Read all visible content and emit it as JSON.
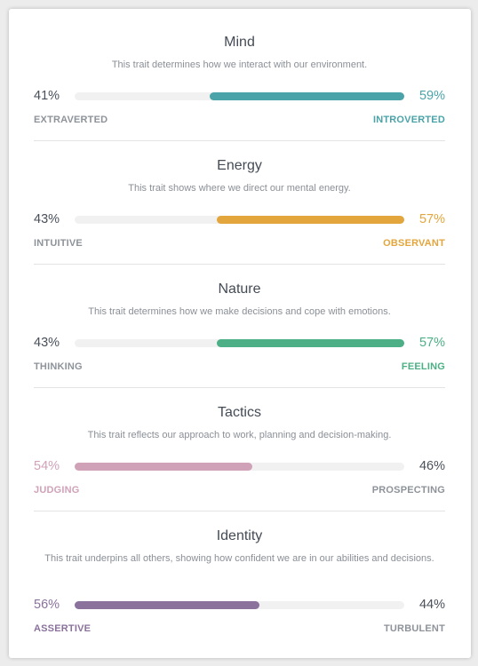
{
  "traits": [
    {
      "title": "Mind",
      "description": "This trait determines how we interact with our environment.",
      "left": {
        "percent": "41%",
        "label": "EXTRAVERTED"
      },
      "right": {
        "percent": "59%",
        "label": "INTROVERTED"
      },
      "dominant": "right",
      "dominant_fraction": 0.59,
      "color": "#4aa3a8"
    },
    {
      "title": "Energy",
      "description": "This trait shows where we direct our mental energy.",
      "left": {
        "percent": "43%",
        "label": "INTUITIVE"
      },
      "right": {
        "percent": "57%",
        "label": "OBSERVANT"
      },
      "dominant": "right",
      "dominant_fraction": 0.57,
      "color": "#e3a63c"
    },
    {
      "title": "Nature",
      "description": "This trait determines how we make decisions and cope with emotions.",
      "left": {
        "percent": "43%",
        "label": "THINKING"
      },
      "right": {
        "percent": "57%",
        "label": "FEELING"
      },
      "dominant": "right",
      "dominant_fraction": 0.57,
      "color": "#4caf86"
    },
    {
      "title": "Tactics",
      "description": "This trait reflects our approach to work, planning and decision-making.",
      "left": {
        "percent": "54%",
        "label": "JUDGING"
      },
      "right": {
        "percent": "46%",
        "label": "PROSPECTING"
      },
      "dominant": "left",
      "dominant_fraction": 0.54,
      "color": "#d0a2b8"
    },
    {
      "title": "Identity",
      "description": "This trait underpins all others, showing how confident we are in our abilities and decisions.",
      "left": {
        "percent": "56%",
        "label": "ASSERTIVE"
      },
      "right": {
        "percent": "44%",
        "label": "TURBULENT"
      },
      "dominant": "left",
      "dominant_fraction": 0.56,
      "color": "#8a729c"
    }
  ]
}
